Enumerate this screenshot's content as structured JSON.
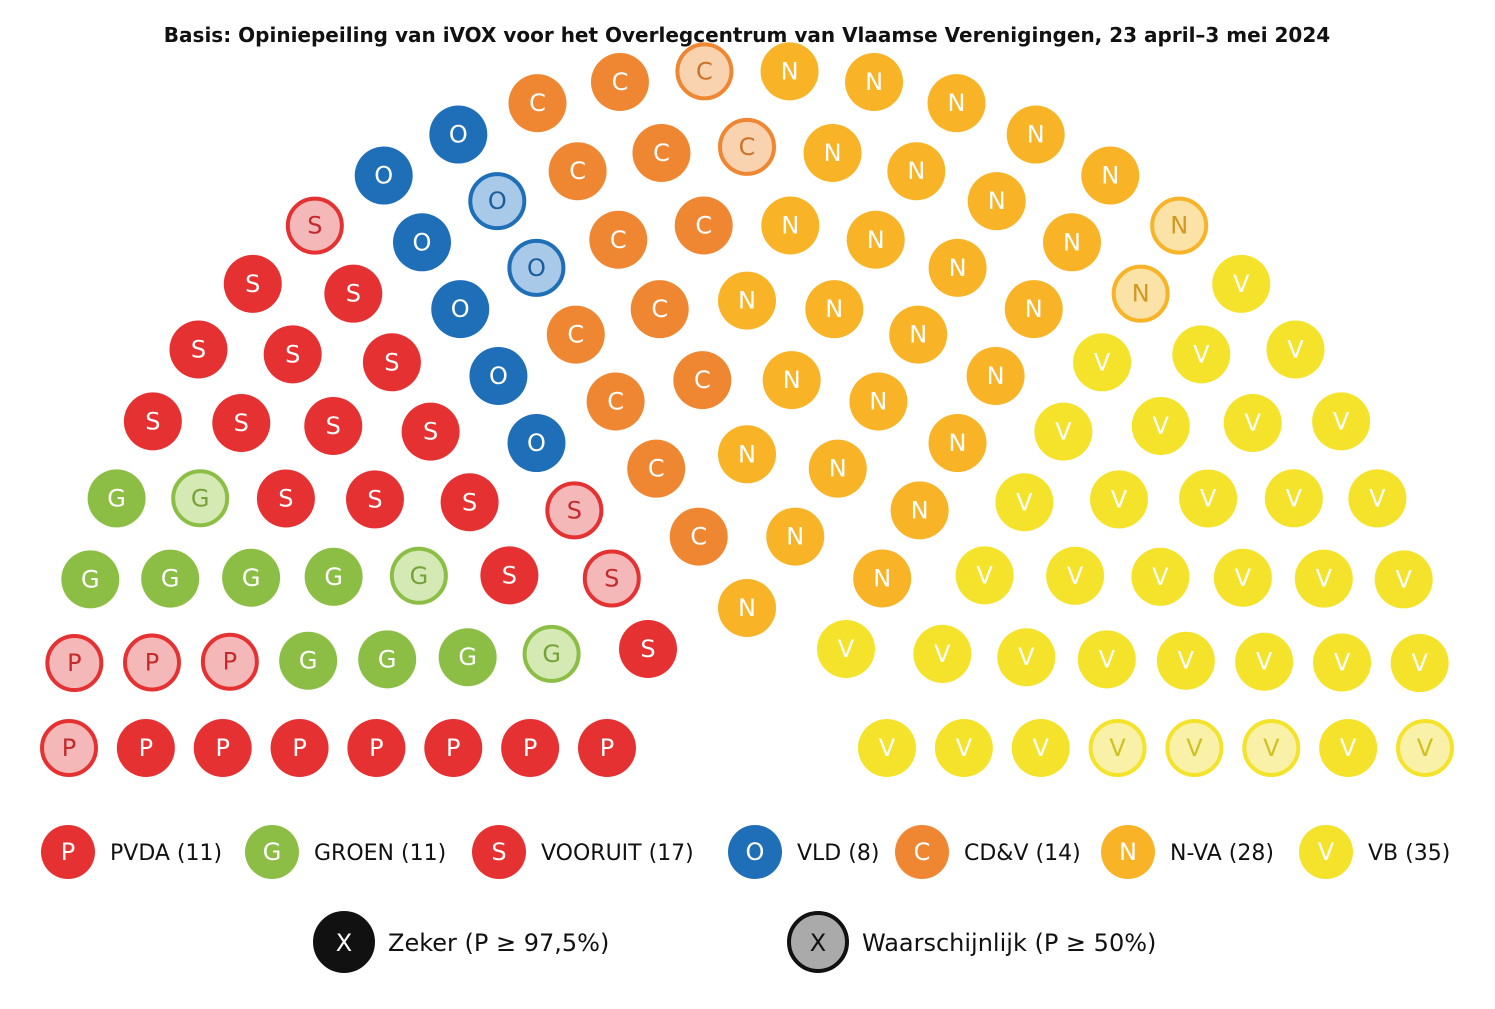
{
  "chart_data": {
    "type": "parliament",
    "title": "Basis: Opiniepeiling van iVOX voor het Overlegcentrum van Vlaamse Verenigingen, 23 april–3 mei 2024",
    "total_seats": 124,
    "parties": [
      {
        "key": "PVDA",
        "letter": "P",
        "label": "PVDA (11)",
        "seats": 11,
        "certain": 7,
        "probable": 4,
        "color": "#e63132",
        "light": "#f5b8b8"
      },
      {
        "key": "GROEN",
        "letter": "G",
        "label": "GROEN (11)",
        "seats": 11,
        "certain": 8,
        "probable": 3,
        "color": "#8cbe45",
        "light": "#d4e9b4"
      },
      {
        "key": "VOORUIT",
        "letter": "S",
        "label": "VOORUIT (17)",
        "seats": 17,
        "certain": 14,
        "probable": 3,
        "color": "#e63132",
        "light": "#f5b8b8"
      },
      {
        "key": "VLD",
        "letter": "O",
        "label": "VLD (8)",
        "seats": 8,
        "certain": 6,
        "probable": 2,
        "color": "#1f6eb8",
        "light": "#a9c9e8"
      },
      {
        "key": "CD&V",
        "letter": "C",
        "label": "CD&V (14)",
        "seats": 14,
        "certain": 12,
        "probable": 2,
        "color": "#ef8732",
        "light": "#f9d3b0"
      },
      {
        "key": "N-VA",
        "letter": "N",
        "label": "N-VA (28)",
        "seats": 28,
        "certain": 26,
        "probable": 2,
        "color": "#f8b326",
        "light": "#fbe3a8"
      },
      {
        "key": "VB",
        "letter": "V",
        "label": "VB (35)",
        "seats": 35,
        "certain": 31,
        "probable": 4,
        "color": "#f4e32a",
        "light": "#f9f1a8"
      }
    ],
    "key": [
      {
        "letter": "X",
        "label": "Zeker (P ≥ 97,5%)",
        "fill": "#111111",
        "text_color": "#ffffff"
      },
      {
        "letter": "X",
        "label": "Waarschijnlijk (P ≥ 50%)",
        "fill": "#aaaaaa",
        "text_color": "#111111"
      }
    ]
  }
}
